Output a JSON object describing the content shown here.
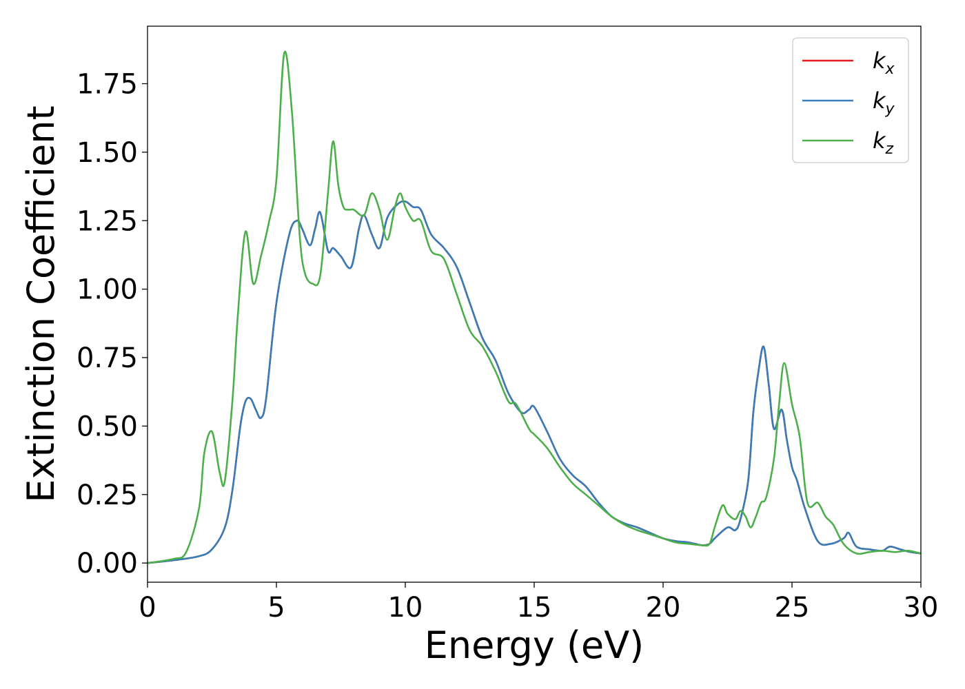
{
  "chart_data": {
    "type": "line",
    "xlabel": "Energy (eV)",
    "ylabel": "Extinction Coefficient",
    "xlim": [
      0,
      30
    ],
    "ylim": [
      -0.07,
      1.96
    ],
    "xticks": [
      0,
      5,
      10,
      15,
      20,
      25,
      30
    ],
    "xtick_labels": [
      "0",
      "5",
      "10",
      "15",
      "20",
      "25",
      "30"
    ],
    "yticks": [
      0,
      0.25,
      0.5,
      0.75,
      1.0,
      1.25,
      1.5,
      1.75
    ],
    "ytick_labels": [
      "0.00",
      "0.25",
      "0.50",
      "0.75",
      "1.00",
      "1.25",
      "1.50",
      "1.75"
    ],
    "grid": false,
    "legend_position": "top-right",
    "legend": [
      {
        "base": "k",
        "sub": "x",
        "color": "#e41a1c"
      },
      {
        "base": "k",
        "sub": "y",
        "color": "#377eb8"
      },
      {
        "base": "k",
        "sub": "z",
        "color": "#4daf4a"
      }
    ],
    "series": [
      {
        "name": "kx",
        "color": "#e41a1c",
        "x": [
          0,
          1.0,
          2.0,
          2.5,
          3.0,
          3.3,
          3.6,
          3.8,
          4.0,
          4.2,
          4.4,
          4.6,
          5.0,
          5.5,
          5.8,
          6.0,
          6.3,
          6.5,
          6.7,
          7.0,
          7.2,
          7.5,
          7.9,
          8.2,
          8.4,
          8.7,
          9.0,
          9.3,
          9.7,
          10.0,
          10.3,
          10.6,
          11.0,
          11.5,
          12.0,
          12.5,
          13.0,
          13.5,
          14.0,
          14.5,
          14.8,
          15.0,
          15.5,
          16.0,
          16.5,
          17.0,
          17.5,
          18.0,
          18.5,
          19.0,
          19.5,
          20.0,
          20.5,
          21.0,
          21.5,
          21.8,
          22.0,
          22.5,
          22.8,
          23.0,
          23.3,
          23.5,
          23.7,
          23.9,
          24.1,
          24.3,
          24.6,
          24.8,
          25.0,
          25.2,
          25.5,
          26.0,
          26.5,
          27.0,
          27.2,
          27.5,
          28.0,
          28.5,
          28.8,
          29.2,
          29.6,
          30.0
        ],
        "y": [
          0.0,
          0.01,
          0.025,
          0.05,
          0.13,
          0.27,
          0.5,
          0.59,
          0.6,
          0.56,
          0.53,
          0.6,
          0.95,
          1.2,
          1.25,
          1.22,
          1.16,
          1.22,
          1.28,
          1.14,
          1.15,
          1.12,
          1.08,
          1.22,
          1.27,
          1.2,
          1.15,
          1.26,
          1.31,
          1.32,
          1.3,
          1.29,
          1.2,
          1.15,
          1.08,
          0.95,
          0.82,
          0.74,
          0.62,
          0.55,
          0.56,
          0.57,
          0.48,
          0.38,
          0.32,
          0.28,
          0.22,
          0.17,
          0.145,
          0.13,
          0.11,
          0.09,
          0.08,
          0.075,
          0.065,
          0.07,
          0.09,
          0.13,
          0.12,
          0.16,
          0.3,
          0.55,
          0.7,
          0.79,
          0.65,
          0.49,
          0.56,
          0.45,
          0.35,
          0.3,
          0.2,
          0.08,
          0.07,
          0.09,
          0.11,
          0.06,
          0.05,
          0.045,
          0.06,
          0.05,
          0.04,
          0.035
        ]
      },
      {
        "name": "ky",
        "color": "#377eb8",
        "x": [
          0,
          1.0,
          2.0,
          2.5,
          3.0,
          3.3,
          3.6,
          3.8,
          4.0,
          4.2,
          4.4,
          4.6,
          5.0,
          5.5,
          5.8,
          6.0,
          6.3,
          6.5,
          6.7,
          7.0,
          7.2,
          7.5,
          7.9,
          8.2,
          8.4,
          8.7,
          9.0,
          9.3,
          9.7,
          10.0,
          10.3,
          10.6,
          11.0,
          11.5,
          12.0,
          12.5,
          13.0,
          13.5,
          14.0,
          14.5,
          14.8,
          15.0,
          15.5,
          16.0,
          16.5,
          17.0,
          17.5,
          18.0,
          18.5,
          19.0,
          19.5,
          20.0,
          20.5,
          21.0,
          21.5,
          21.8,
          22.0,
          22.5,
          22.8,
          23.0,
          23.3,
          23.5,
          23.7,
          23.9,
          24.1,
          24.3,
          24.6,
          24.8,
          25.0,
          25.2,
          25.5,
          26.0,
          26.5,
          27.0,
          27.2,
          27.5,
          28.0,
          28.5,
          28.8,
          29.2,
          29.6,
          30.0
        ],
        "y": [
          0.0,
          0.01,
          0.025,
          0.05,
          0.13,
          0.27,
          0.5,
          0.59,
          0.6,
          0.56,
          0.53,
          0.6,
          0.95,
          1.2,
          1.25,
          1.22,
          1.16,
          1.22,
          1.28,
          1.14,
          1.15,
          1.12,
          1.08,
          1.22,
          1.27,
          1.2,
          1.15,
          1.26,
          1.31,
          1.32,
          1.3,
          1.29,
          1.2,
          1.15,
          1.08,
          0.95,
          0.82,
          0.74,
          0.62,
          0.55,
          0.56,
          0.57,
          0.48,
          0.38,
          0.32,
          0.28,
          0.22,
          0.17,
          0.145,
          0.13,
          0.11,
          0.09,
          0.08,
          0.075,
          0.065,
          0.07,
          0.09,
          0.13,
          0.12,
          0.16,
          0.3,
          0.55,
          0.7,
          0.79,
          0.65,
          0.49,
          0.56,
          0.45,
          0.35,
          0.3,
          0.2,
          0.08,
          0.07,
          0.09,
          0.11,
          0.06,
          0.05,
          0.045,
          0.06,
          0.05,
          0.04,
          0.035
        ]
      },
      {
        "name": "kz",
        "color": "#4daf4a",
        "x": [
          0,
          1.0,
          1.5,
          2.0,
          2.2,
          2.5,
          2.8,
          3.0,
          3.3,
          3.5,
          3.8,
          4.1,
          4.4,
          4.7,
          5.0,
          5.3,
          5.6,
          5.9,
          6.1,
          6.4,
          6.7,
          7.0,
          7.2,
          7.4,
          7.6,
          7.8,
          8.0,
          8.4,
          8.7,
          9.0,
          9.3,
          9.6,
          9.8,
          10.0,
          10.3,
          10.6,
          11.0,
          11.5,
          12.0,
          12.5,
          13.0,
          13.5,
          14.0,
          14.3,
          14.8,
          15.0,
          15.5,
          16.0,
          16.5,
          17.0,
          17.5,
          18.0,
          18.5,
          19.0,
          19.5,
          20.0,
          20.5,
          21.0,
          21.5,
          21.8,
          22.0,
          22.3,
          22.5,
          22.8,
          23.0,
          23.2,
          23.4,
          23.6,
          23.8,
          24.0,
          24.3,
          24.5,
          24.7,
          25.0,
          25.3,
          25.6,
          26.0,
          26.3,
          26.6,
          27.0,
          27.5,
          28.0,
          28.5,
          29.0,
          29.5,
          30.0
        ],
        "y": [
          0.0,
          0.015,
          0.04,
          0.2,
          0.4,
          0.48,
          0.33,
          0.3,
          0.6,
          0.9,
          1.21,
          1.02,
          1.12,
          1.24,
          1.4,
          1.86,
          1.65,
          1.2,
          1.06,
          1.02,
          1.05,
          1.35,
          1.54,
          1.38,
          1.3,
          1.29,
          1.29,
          1.27,
          1.35,
          1.29,
          1.18,
          1.3,
          1.35,
          1.3,
          1.25,
          1.25,
          1.14,
          1.11,
          0.98,
          0.85,
          0.79,
          0.7,
          0.59,
          0.58,
          0.49,
          0.47,
          0.42,
          0.35,
          0.29,
          0.25,
          0.21,
          0.17,
          0.14,
          0.12,
          0.105,
          0.09,
          0.075,
          0.07,
          0.065,
          0.07,
          0.13,
          0.21,
          0.18,
          0.16,
          0.19,
          0.17,
          0.13,
          0.17,
          0.22,
          0.24,
          0.38,
          0.58,
          0.73,
          0.58,
          0.46,
          0.22,
          0.22,
          0.17,
          0.14,
          0.07,
          0.035,
          0.04,
          0.045,
          0.04,
          0.045,
          0.035
        ]
      }
    ]
  }
}
